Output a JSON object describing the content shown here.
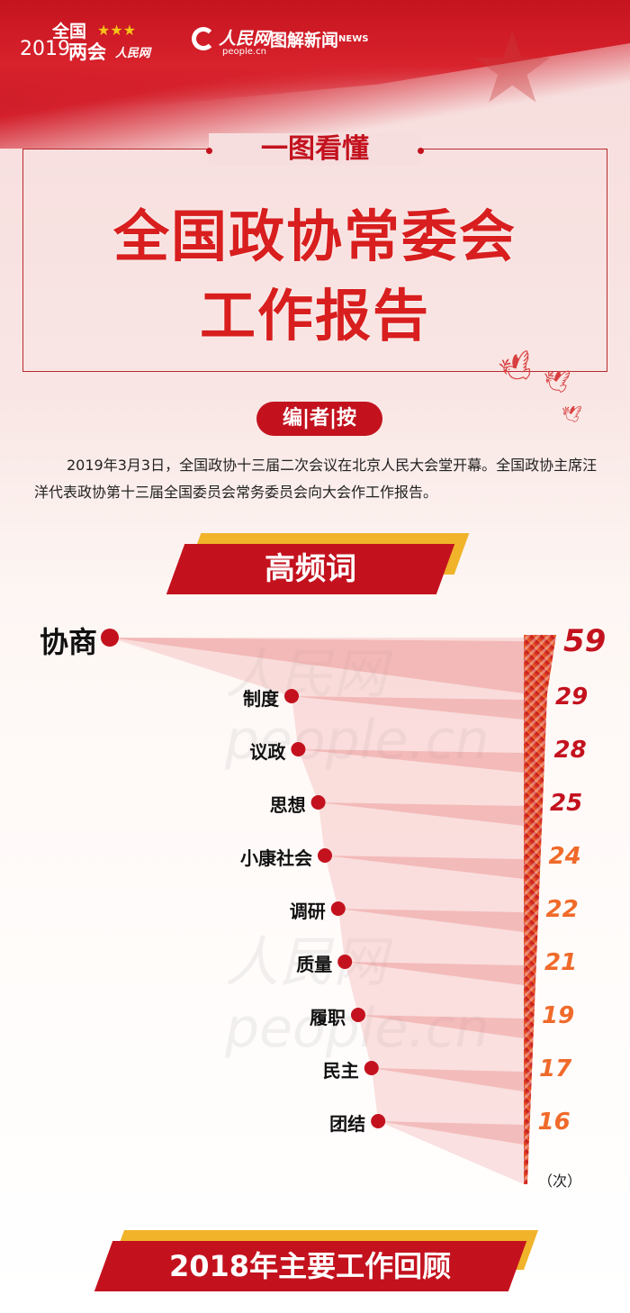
{
  "header": {
    "event_logo_line1": "全国",
    "event_logo_line2_year": "2019",
    "event_logo_line2": "两会",
    "people_logo": "人民网",
    "people_domain": "people.cn",
    "news_logo": "图解新闻",
    "news_logo_suffix": "NEWS"
  },
  "title": {
    "kicker": "一图看懂",
    "line1": "全国政协常委会",
    "line2": "工作报告"
  },
  "editor_note": {
    "badge": "编|者|按",
    "text": "2019年3月3日，全国政协十三届二次会议在北京人民大会堂开幕。全国政协主席汪洋代表政协第十三届全国委员会常务委员会向大会作工作报告。"
  },
  "section1": {
    "title": "高频词"
  },
  "chart_data": {
    "type": "bar",
    "categories": [
      "协商",
      "制度",
      "议政",
      "思想",
      "小康社会",
      "调研",
      "质量",
      "履职",
      "民主",
      "团结"
    ],
    "values": [
      59,
      29,
      28,
      25,
      24,
      22,
      21,
      19,
      17,
      16
    ],
    "unit": "（次）",
    "colors": {
      "primary": "#c3121e",
      "secondary": "#f06a2a"
    }
  },
  "section2": {
    "title": "2018年主要工作回顾"
  },
  "watermark": "人民网 people.cn"
}
